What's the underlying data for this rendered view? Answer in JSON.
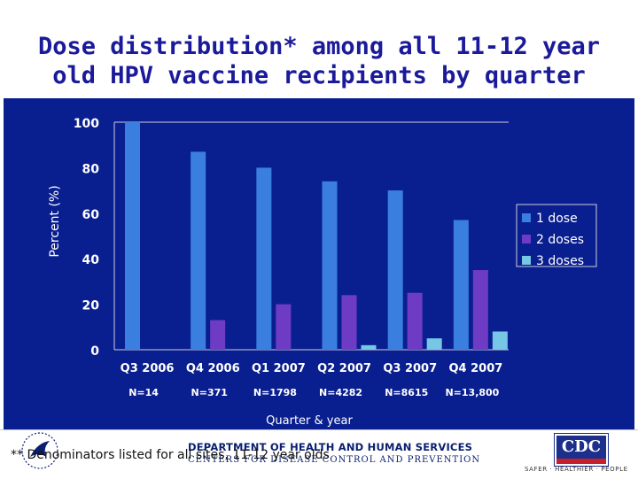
{
  "title_lines": [
    "Dose distribution* among all 11-12 year",
    "old HPV vaccine recipients by quarter"
  ],
  "chart_data": {
    "type": "bar",
    "categories": [
      "Q3 2006",
      "Q4 2006",
      "Q1 2007",
      "Q2 2007",
      "Q3 2007",
      "Q4 2007"
    ],
    "category_counts": [
      "N=14",
      "N=371",
      "N=1798",
      "N=4282",
      "N=8615",
      "N=13,800"
    ],
    "series": [
      {
        "name": "1 dose",
        "values": [
          100,
          87,
          80,
          74,
          70,
          57
        ],
        "color": "#3a7fe0"
      },
      {
        "name": "2 doses",
        "values": [
          0,
          13,
          20,
          24,
          25,
          35
        ],
        "color": "#6e3cc4"
      },
      {
        "name": "3 doses",
        "values": [
          0,
          0,
          0,
          2,
          5,
          8
        ],
        "color": "#76c7e6"
      }
    ],
    "xlabel": "Quarter & year",
    "ylabel": "Percent (%)",
    "ylim": [
      0,
      100
    ],
    "yticks": [
      "0",
      "20",
      "40",
      "60",
      "80",
      "100"
    ],
    "legend_position": "right"
  },
  "footer": {
    "footnote": "** Denominators listed for all sites, 11-12 year olds",
    "hhs": "DEPARTMENT OF HEALTH AND HUMAN SERVICES",
    "cdc": "CENTERS FOR DISEASE CONTROL AND PREVENTION",
    "logo": "CDC",
    "tagline": "SAFER · HEALTHIER · PEOPLE"
  },
  "colors": {
    "panel_background": "#0a1f8f",
    "title": "#1a1a9a",
    "axis_text": "#ffffff"
  }
}
